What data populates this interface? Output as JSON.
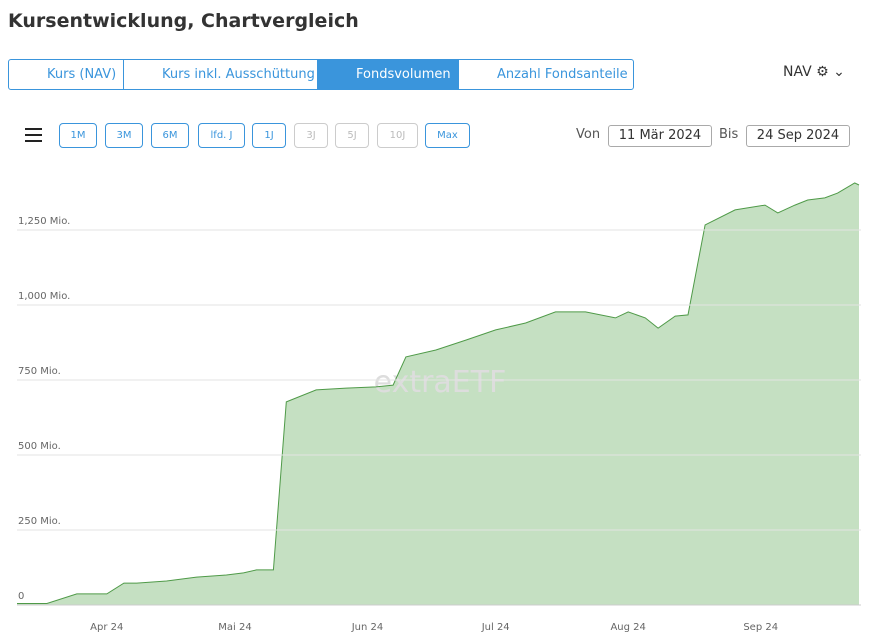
{
  "header": {
    "title": "Kursentwicklung, Chartvergleich"
  },
  "tabs": [
    "Kurs (NAV)",
    "Kurs inkl. Ausschüttung",
    "Fondsvolumen",
    "Anzahl Fondsanteile"
  ],
  "active_tab": 2,
  "nav_menu": "NAV",
  "ranges": [
    "1M",
    "3M",
    "6M",
    "lfd. J",
    "1J",
    "3J",
    "5J",
    "10J",
    "Max"
  ],
  "disabled_ranges": [
    5,
    6,
    7
  ],
  "date_range": {
    "from_label": "Von",
    "from": "11 Mär 2024",
    "to_label": "Bis",
    "to": "24 Sep 2024"
  },
  "watermark": "extraETF",
  "chart_data": {
    "type": "area",
    "x": [
      "2024-03-11",
      "2024-03-18",
      "2024-03-25",
      "2024-04-01",
      "2024-04-05",
      "2024-04-08",
      "2024-04-15",
      "2024-04-22",
      "2024-04-29",
      "2024-05-03",
      "2024-05-06",
      "2024-05-10",
      "2024-05-13",
      "2024-05-20",
      "2024-05-27",
      "2024-06-03",
      "2024-06-07",
      "2024-06-10",
      "2024-06-17",
      "2024-06-24",
      "2024-07-01",
      "2024-07-08",
      "2024-07-15",
      "2024-07-22",
      "2024-07-29",
      "2024-08-01",
      "2024-08-05",
      "2024-08-08",
      "2024-08-12",
      "2024-08-15",
      "2024-08-19",
      "2024-08-26",
      "2024-09-02",
      "2024-09-05",
      "2024-09-09",
      "2024-09-12",
      "2024-09-16",
      "2024-09-19",
      "2024-09-23",
      "2024-09-24"
    ],
    "values": [
      5,
      5,
      37,
      37,
      73,
      73,
      80,
      93,
      100,
      107,
      117,
      117,
      677,
      717,
      723,
      727,
      733,
      827,
      850,
      883,
      917,
      940,
      977,
      977,
      957,
      977,
      957,
      923,
      963,
      967,
      1267,
      1317,
      1333,
      1307,
      1333,
      1350,
      1357,
      1373,
      1407,
      1400
    ],
    "color": "#c5e0c2",
    "line_color": "#4f9a48",
    "xlim": [
      "2024-03-11",
      "2024-09-24"
    ],
    "xticks": [
      {
        "value": "2024-04-01",
        "label": "Apr 24"
      },
      {
        "value": "2024-05-01",
        "label": "Mai 24"
      },
      {
        "value": "2024-06-01",
        "label": "Jun 24"
      },
      {
        "value": "2024-07-01",
        "label": "Jul 24"
      },
      {
        "value": "2024-08-01",
        "label": "Aug 24"
      },
      {
        "value": "2024-09-01",
        "label": "Sep 24"
      }
    ],
    "ylim": [
      0,
      1430
    ],
    "yticks": [
      0,
      {
        "value": 250,
        "label": "250 Mio."
      },
      {
        "value": 500,
        "label": "500 Mio."
      },
      {
        "value": 750,
        "label": "750 Mio."
      },
      {
        "value": 1000,
        "label": "1,000 Mio."
      },
      {
        "value": 1250,
        "label": "1,250 Mio."
      }
    ],
    "grid": true
  }
}
